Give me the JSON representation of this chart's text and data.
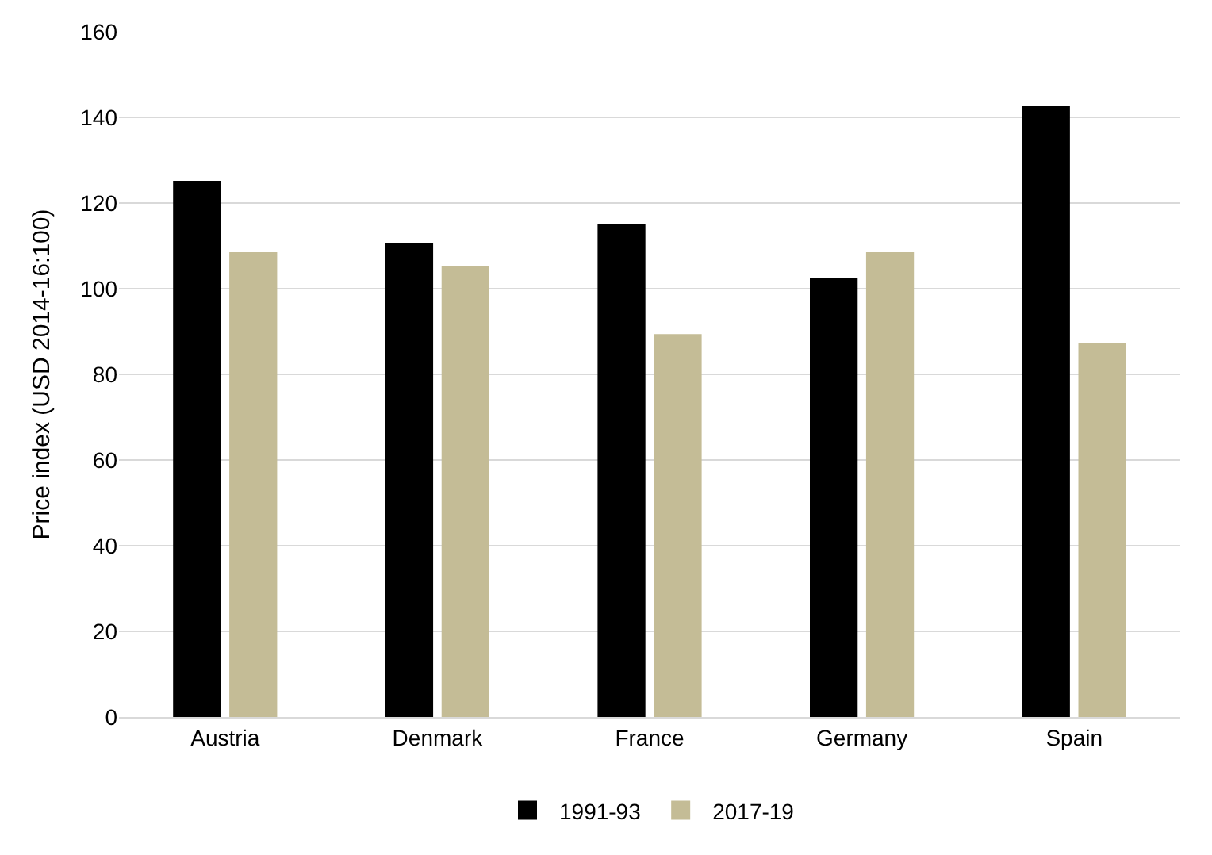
{
  "chart_data": {
    "type": "bar",
    "ylabel": "Price index (USD 2014-16:100)",
    "categories": [
      "Austria",
      "Denmark",
      "France",
      "Germany",
      "Spain"
    ],
    "series": [
      {
        "name": "1991-93",
        "color": "#000000",
        "values": [
          125.2,
          110.6,
          115,
          102.4,
          142.6
        ]
      },
      {
        "name": "2017-19",
        "color": "#c4bc96",
        "values": [
          108.5,
          105.3,
          89.4,
          108.5,
          87.3
        ]
      }
    ],
    "ylim": [
      0,
      160
    ],
    "yticks": [
      0,
      20,
      40,
      60,
      80,
      100,
      120,
      140,
      160
    ],
    "grid": "y",
    "legend": "bottom"
  }
}
